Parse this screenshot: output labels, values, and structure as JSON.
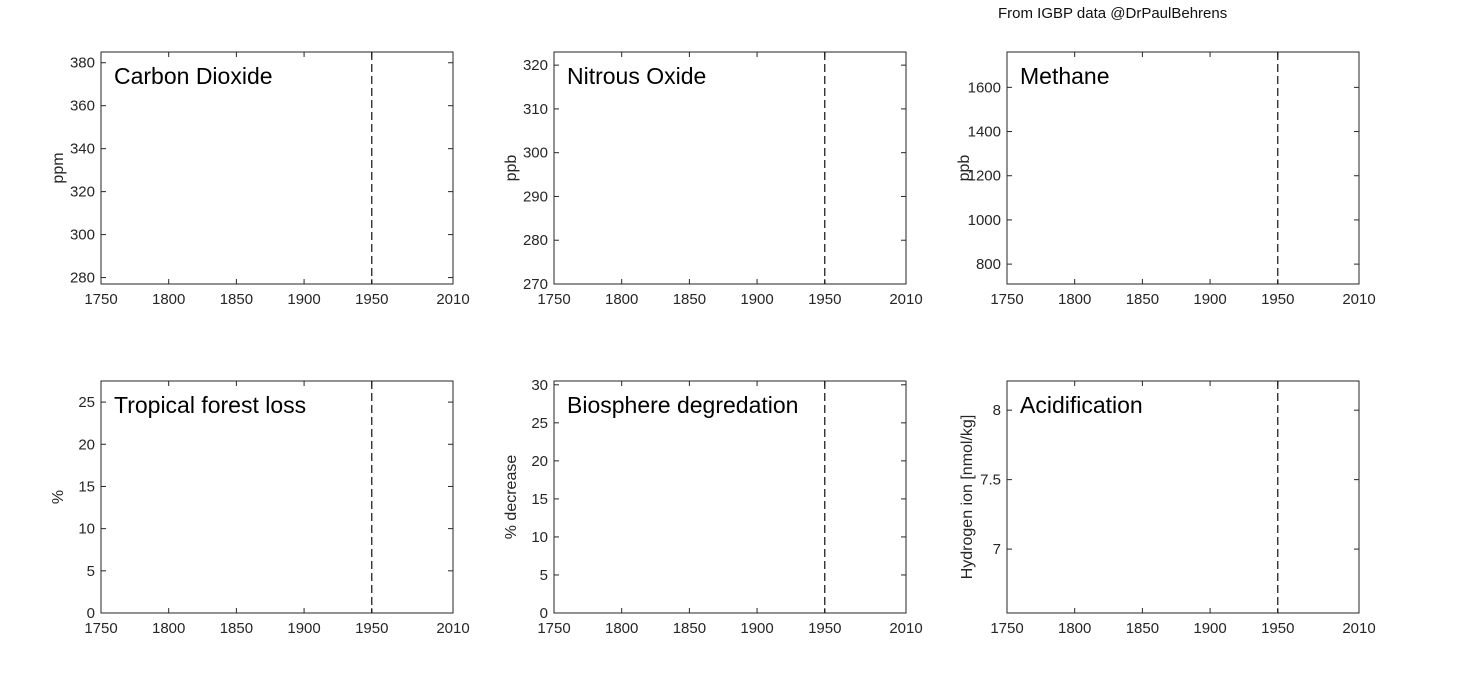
{
  "credit": "From IGBP data @DrPaulBehrens",
  "chart_data": [
    {
      "type": "line",
      "title": "Carbon Dioxide",
      "ylabel": "ppm",
      "xlim": [
        1750,
        2010
      ],
      "ylim": [
        277,
        385
      ],
      "xticks": [
        1750,
        1800,
        1850,
        1900,
        1950,
        2010
      ],
      "yticks": [
        280,
        300,
        320,
        340,
        360,
        380
      ],
      "xtick_labels": [
        "1750",
        "1800",
        "1850",
        "1900",
        "1950",
        "2010"
      ],
      "ytick_labels": [
        "280",
        "300",
        "320",
        "340",
        "360",
        "380"
      ],
      "reference_line": {
        "x": 1950,
        "style": "dashed"
      },
      "series": []
    },
    {
      "type": "line",
      "title": "Nitrous Oxide",
      "ylabel": "ppb",
      "xlim": [
        1750,
        2010
      ],
      "ylim": [
        270,
        323
      ],
      "xticks": [
        1750,
        1800,
        1850,
        1900,
        1950,
        2010
      ],
      "yticks": [
        270,
        280,
        290,
        300,
        310,
        320
      ],
      "xtick_labels": [
        "1750",
        "1800",
        "1850",
        "1900",
        "1950",
        "2010"
      ],
      "ytick_labels": [
        "270",
        "280",
        "290",
        "300",
        "310",
        "320"
      ],
      "reference_line": {
        "x": 1950,
        "style": "dashed"
      },
      "series": []
    },
    {
      "type": "line",
      "title": "Methane",
      "ylabel": "ppb",
      "xlim": [
        1750,
        2010
      ],
      "ylim": [
        710,
        1760
      ],
      "xticks": [
        1750,
        1800,
        1850,
        1900,
        1950,
        2010
      ],
      "yticks": [
        800,
        1000,
        1200,
        1400,
        1600
      ],
      "xtick_labels": [
        "1750",
        "1800",
        "1850",
        "1900",
        "1950",
        "2010"
      ],
      "ytick_labels": [
        "800",
        "1000",
        "1200",
        "1400",
        "1600"
      ],
      "reference_line": {
        "x": 1950,
        "style": "dashed"
      },
      "series": []
    },
    {
      "type": "line",
      "title": "Tropical forest loss",
      "ylabel": "%",
      "xlim": [
        1750,
        2010
      ],
      "ylim": [
        0,
        27.5
      ],
      "xticks": [
        1750,
        1800,
        1850,
        1900,
        1950,
        2010
      ],
      "yticks": [
        0,
        5,
        10,
        15,
        20,
        25
      ],
      "xtick_labels": [
        "1750",
        "1800",
        "1850",
        "1900",
        "1950",
        "2010"
      ],
      "ytick_labels": [
        "0",
        "5",
        "10",
        "15",
        "20",
        "25"
      ],
      "reference_line": {
        "x": 1950,
        "style": "dashed"
      },
      "series": []
    },
    {
      "type": "line",
      "title": "Biosphere degredation",
      "ylabel": "% decrease",
      "xlim": [
        1750,
        2010
      ],
      "ylim": [
        0,
        30.5
      ],
      "xticks": [
        1750,
        1800,
        1850,
        1900,
        1950,
        2010
      ],
      "yticks": [
        0,
        5,
        10,
        15,
        20,
        25,
        30
      ],
      "xtick_labels": [
        "1750",
        "1800",
        "1850",
        "1900",
        "1950",
        "2010"
      ],
      "ytick_labels": [
        "0",
        "5",
        "10",
        "15",
        "20",
        "25",
        "30"
      ],
      "reference_line": {
        "x": 1950,
        "style": "dashed"
      },
      "series": []
    },
    {
      "type": "line",
      "title": "Acidification",
      "ylabel": "Hydrogen ion [nmol/kg]",
      "xlim": [
        1750,
        2010
      ],
      "ylim": [
        6.54,
        8.21
      ],
      "xticks": [
        1750,
        1800,
        1850,
        1900,
        1950,
        2010
      ],
      "yticks": [
        7,
        7.5,
        8
      ],
      "xtick_labels": [
        "1750",
        "1800",
        "1850",
        "1900",
        "1950",
        "2010"
      ],
      "ytick_labels": [
        "7",
        "7.5",
        "8"
      ],
      "reference_line": {
        "x": 1950,
        "style": "dashed"
      },
      "series": []
    }
  ]
}
